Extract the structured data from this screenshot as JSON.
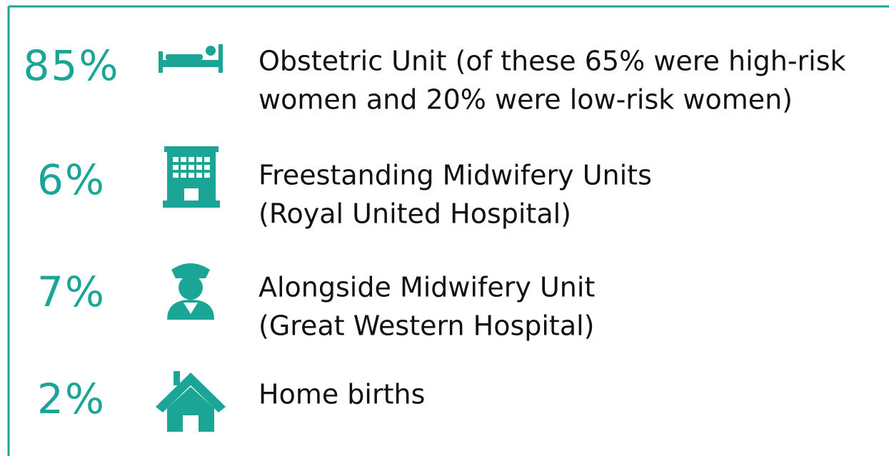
{
  "items": [
    {
      "percent": "85%",
      "lines": [
        "Obstetric Unit (of these 65% were high-risk",
        "women and 20% were low-risk women)"
      ]
    },
    {
      "percent": "6%",
      "lines": [
        "Freestanding Midwifery Units",
        "(Royal United Hospital)"
      ]
    },
    {
      "percent": "7%",
      "lines": [
        "Alongside Midwifery Unit",
        "(Great Western Hospital)"
      ]
    },
    {
      "percent": "2%",
      "lines": [
        "Home births"
      ]
    }
  ]
}
